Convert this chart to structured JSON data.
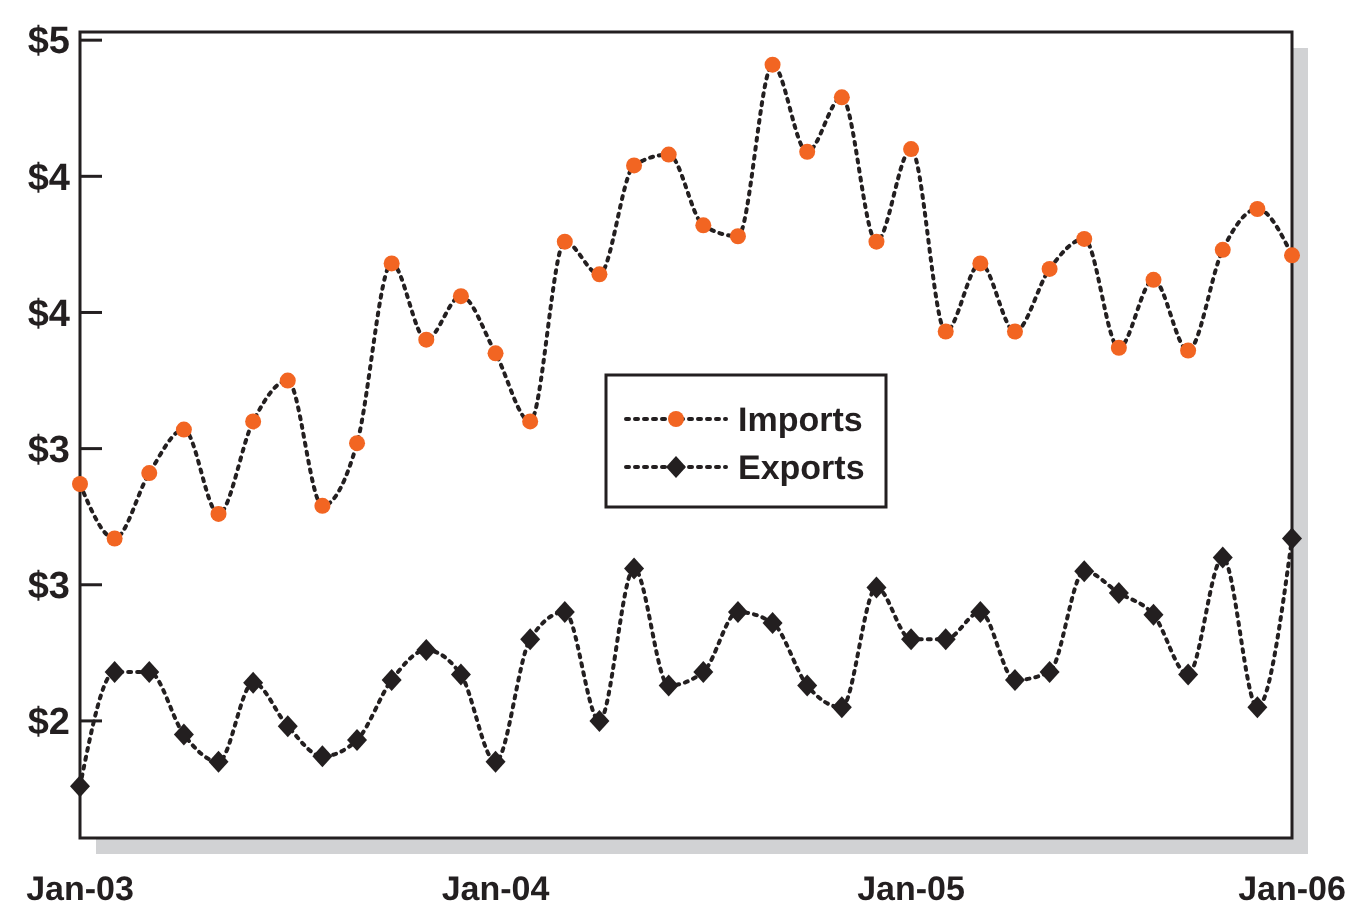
{
  "chart_data": {
    "type": "line",
    "categories": [
      "Jan-03",
      null,
      null,
      null,
      null,
      null,
      null,
      null,
      null,
      null,
      null,
      null,
      "Jan-04",
      null,
      null,
      null,
      null,
      null,
      null,
      null,
      null,
      null,
      null,
      null,
      "Jan-05",
      null,
      null,
      null,
      null,
      null,
      null,
      null,
      null,
      null,
      null,
      "Jan-06"
    ],
    "ylim": [
      2.07,
      5.03
    ],
    "yticks": [
      {
        "value": 5,
        "label": "$5"
      },
      {
        "value": 4.5,
        "label": "$4"
      },
      {
        "value": 4,
        "label": "$4"
      },
      {
        "value": 3.5,
        "label": "$3"
      },
      {
        "value": 3,
        "label": "$3"
      },
      {
        "value": 2.5,
        "label": "$2"
      }
    ],
    "grid": false,
    "legend": "center",
    "line_style": "dotted",
    "series": [
      {
        "name": "Imports",
        "color": "#f26522",
        "marker": "circle",
        "values": [
          3.37,
          3.17,
          3.41,
          3.57,
          3.26,
          3.6,
          3.75,
          3.29,
          3.52,
          4.18,
          3.9,
          4.06,
          3.85,
          3.6,
          4.26,
          4.14,
          4.54,
          4.58,
          4.32,
          4.28,
          4.91,
          4.59,
          4.79,
          4.26,
          4.6,
          3.93,
          4.18,
          3.93,
          4.16,
          4.27,
          3.87,
          4.12,
          3.86,
          4.23,
          4.38,
          4.21
        ]
      },
      {
        "name": "Exports",
        "color": "#231f20",
        "marker": "diamond",
        "values": [
          2.26,
          2.68,
          2.68,
          2.45,
          2.35,
          2.64,
          2.48,
          2.37,
          2.43,
          2.65,
          2.76,
          2.67,
          2.35,
          2.8,
          2.9,
          2.5,
          3.06,
          2.63,
          2.68,
          2.9,
          2.86,
          2.63,
          2.55,
          2.99,
          2.8,
          2.8,
          2.9,
          2.65,
          2.68,
          3.05,
          2.97,
          2.89,
          2.67,
          3.1,
          2.55,
          3.17
        ]
      }
    ]
  }
}
